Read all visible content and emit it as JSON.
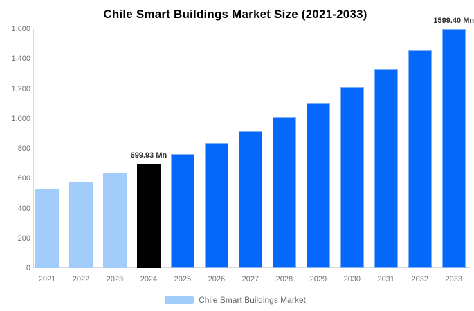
{
  "title": "Chile Smart Buildings Market Size (2021-2033)",
  "legend": {
    "label": "Chile Smart Buildings Market",
    "swatch_color": "#a2cdfb"
  },
  "colors": {
    "historical": "#a2cdfb",
    "base_year": "#000000",
    "forecast": "#0667fb",
    "forecast_stroke": "#7fb1f7",
    "axis_line": "#d9d9d9",
    "tick_label": "#717171",
    "data_label": "#2f2f2f",
    "title": "#000000"
  },
  "chart_data": {
    "type": "bar",
    "title": "Chile Smart Buildings Market Size (2021-2033)",
    "unit": "Mn",
    "categories": [
      "2021",
      "2022",
      "2023",
      "2024",
      "2025",
      "2026",
      "2027",
      "2028",
      "2029",
      "2030",
      "2031",
      "2032",
      "2033"
    ],
    "values": [
      525,
      577,
      634,
      699.93,
      762,
      836,
      917,
      1009,
      1107,
      1210,
      1330,
      1458,
      1599.4
    ],
    "bar_roles": [
      "historical",
      "historical",
      "historical",
      "base_year",
      "forecast",
      "forecast",
      "forecast",
      "forecast",
      "forecast",
      "forecast",
      "forecast",
      "forecast",
      "forecast"
    ],
    "data_labels": [
      {
        "index": 3,
        "text": "699.93 Mn"
      },
      {
        "index": 12,
        "text": "1599.40 Mn"
      }
    ],
    "y_tick_labels": [
      "0",
      "200",
      "400",
      "600",
      "800",
      "1,000",
      "1,200",
      "1,400",
      "1,600"
    ],
    "y_tick_step": 200,
    "ylim": [
      0,
      1600
    ],
    "xlabel": "",
    "ylabel": "",
    "grid": false,
    "legend_position": "bottom",
    "legend_entries": [
      "Chile Smart Buildings Market"
    ]
  }
}
